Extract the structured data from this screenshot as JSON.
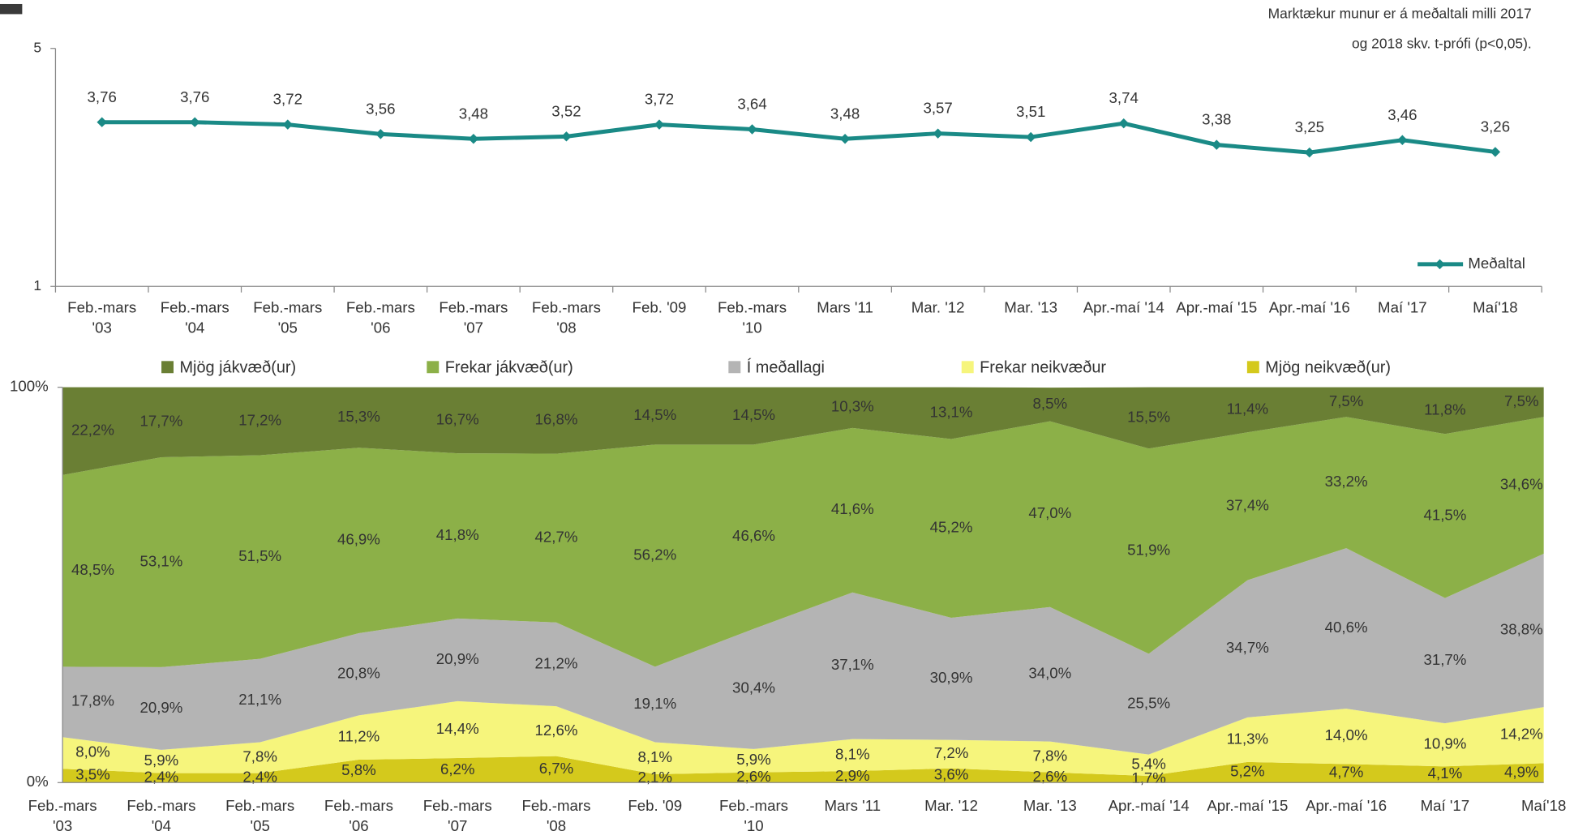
{
  "chart_data": [
    {
      "type": "line",
      "annotation": "Marktækur munur er á meðaltali milli 2017\nog 2018 skv. t-prófi (p<0,05).",
      "categories": [
        "Feb.-mars\n'03",
        "Feb.-mars\n'04",
        "Feb.-mars\n'05",
        "Feb.-mars\n'06",
        "Feb.-mars\n'07",
        "Feb.-mars\n'08",
        "Feb. '09",
        "Feb.-mars\n'10",
        "Mars '11",
        "Mar. '12",
        "Mar. '13",
        "Apr.-maí '14",
        "Apr.-maí '15",
        "Apr.-maí '16",
        "Maí '17",
        "Maí'18"
      ],
      "series": [
        {
          "name": "Meðaltal",
          "color": "#1a8a86",
          "values": [
            3.76,
            3.76,
            3.72,
            3.56,
            3.48,
            3.52,
            3.72,
            3.64,
            3.48,
            3.57,
            3.51,
            3.74,
            3.38,
            3.25,
            3.46,
            3.26
          ],
          "value_labels": [
            "3,76",
            "3,76",
            "3,72",
            "3,56",
            "3,48",
            "3,52",
            "3,72",
            "3,64",
            "3,48",
            "3,57",
            "3,51",
            "3,74",
            "3,38",
            "3,25",
            "3,46",
            "3,26"
          ]
        }
      ],
      "ylim": [
        1,
        5
      ],
      "yticks": [
        1,
        5
      ],
      "legend": "bottom-right"
    },
    {
      "type": "stacked_area",
      "categories": [
        "Feb.-mars\n'03",
        "Feb.-mars\n'04",
        "Feb.-mars\n'05",
        "Feb.-mars\n'06",
        "Feb.-mars\n'07",
        "Feb.-mars\n'08",
        "Feb. '09",
        "Feb.-mars\n'10",
        "Mars '11",
        "Mar. '12",
        "Mar. '13",
        "Apr.-maí '14",
        "Apr.-maí '15",
        "Apr.-maí '16",
        "Maí '17",
        "Maí'18"
      ],
      "series": [
        {
          "name": "Mjög jákvæð(ur)",
          "color": "#6a7f34",
          "values": [
            22.2,
            17.7,
            17.2,
            15.3,
            16.7,
            16.8,
            14.5,
            14.5,
            10.3,
            13.1,
            8.5,
            15.5,
            11.4,
            7.5,
            11.8,
            7.5
          ],
          "value_labels": [
            "22,2%",
            "17,7%",
            "17,2%",
            "15,3%",
            "16,7%",
            "16,8%",
            "14,5%",
            "14,5%",
            "10,3%",
            "13,1%",
            "8,5%",
            "15,5%",
            "11,4%",
            "7,5%",
            "11,8%",
            "7,5%"
          ]
        },
        {
          "name": "Frekar jákvæð(ur)",
          "color": "#8cb048",
          "values": [
            48.5,
            53.1,
            51.5,
            46.9,
            41.8,
            42.7,
            56.2,
            46.6,
            41.6,
            45.2,
            47.0,
            51.9,
            37.4,
            33.2,
            41.5,
            34.6
          ],
          "value_labels": [
            "48,5%",
            "53,1%",
            "51,5%",
            "46,9%",
            "41,8%",
            "42,7%",
            "56,2%",
            "46,6%",
            "41,6%",
            "45,2%",
            "47,0%",
            "51,9%",
            "37,4%",
            "33,2%",
            "41,5%",
            "34,6%"
          ]
        },
        {
          "name": "Í meðallagi",
          "color": "#b4b4b4",
          "values": [
            17.8,
            20.9,
            21.1,
            20.8,
            20.9,
            21.2,
            19.1,
            30.4,
            37.1,
            30.9,
            34.0,
            25.5,
            34.7,
            40.6,
            31.7,
            38.8
          ],
          "value_labels": [
            "17,8%",
            "20,9%",
            "21,1%",
            "20,8%",
            "20,9%",
            "21,2%",
            "19,1%",
            "30,4%",
            "37,1%",
            "30,9%",
            "34,0%",
            "25,5%",
            "34,7%",
            "40,6%",
            "31,7%",
            "38,8%"
          ]
        },
        {
          "name": "Frekar neikvæður",
          "color": "#f6f57c",
          "values": [
            8.0,
            5.9,
            7.8,
            11.2,
            14.4,
            12.6,
            8.1,
            5.9,
            8.1,
            7.2,
            7.8,
            5.4,
            11.3,
            14.0,
            10.9,
            14.2
          ],
          "value_labels": [
            "8,0%",
            "5,9%",
            "7,8%",
            "11,2%",
            "14,4%",
            "12,6%",
            "8,1%",
            "5,9%",
            "8,1%",
            "7,2%",
            "7,8%",
            "5,4%",
            "11,3%",
            "14,0%",
            "10,9%",
            "14,2%"
          ]
        },
        {
          "name": "Mjög neikvæð(ur)",
          "color": "#d4c91c",
          "values": [
            3.5,
            2.4,
            2.4,
            5.8,
            6.2,
            6.7,
            2.1,
            2.6,
            2.9,
            3.6,
            2.6,
            1.7,
            5.2,
            4.7,
            4.1,
            4.9
          ],
          "value_labels": [
            "3,5%",
            "2,4%",
            "2,4%",
            "5,8%",
            "6,2%",
            "6,7%",
            "2,1%",
            "2,6%",
            "2,9%",
            "3,6%",
            "2,6%",
            "1,7%",
            "5,2%",
            "4,7%",
            "4,1%",
            "4,9%"
          ]
        }
      ],
      "ylim": [
        0,
        100
      ],
      "yticks": [
        {
          "value": 0,
          "label": "0%"
        },
        {
          "value": 100,
          "label": "100%"
        }
      ],
      "legend": "top"
    }
  ]
}
